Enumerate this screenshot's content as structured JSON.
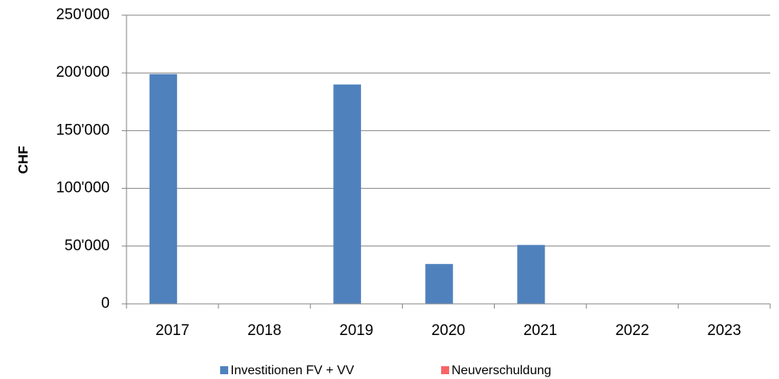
{
  "chart_data": {
    "type": "bar",
    "y_label": "CHF",
    "categories": [
      "2017",
      "2018",
      "2019",
      "2020",
      "2021",
      "2022",
      "2023"
    ],
    "series": [
      {
        "name": "Investitionen FV + VV",
        "color": "#4f81bd",
        "values": [
          199000,
          0,
          190000,
          34500,
          51000,
          0,
          0
        ]
      },
      {
        "name": "Neuverschuldung",
        "color": "#f96464",
        "values": [
          0,
          0,
          0,
          0,
          0,
          0,
          0
        ]
      }
    ],
    "ylim": [
      0,
      250000
    ],
    "yticks": [
      0,
      {
        "value": 50000,
        "label": "50'000"
      },
      {
        "value": 100000,
        "label": "100'000"
      },
      {
        "value": 150000,
        "label": "150'000"
      },
      {
        "value": 200000,
        "label": "200'000"
      },
      {
        "value": 250000,
        "label": "250'000"
      }
    ],
    "grid": true,
    "legend": "bottom"
  }
}
